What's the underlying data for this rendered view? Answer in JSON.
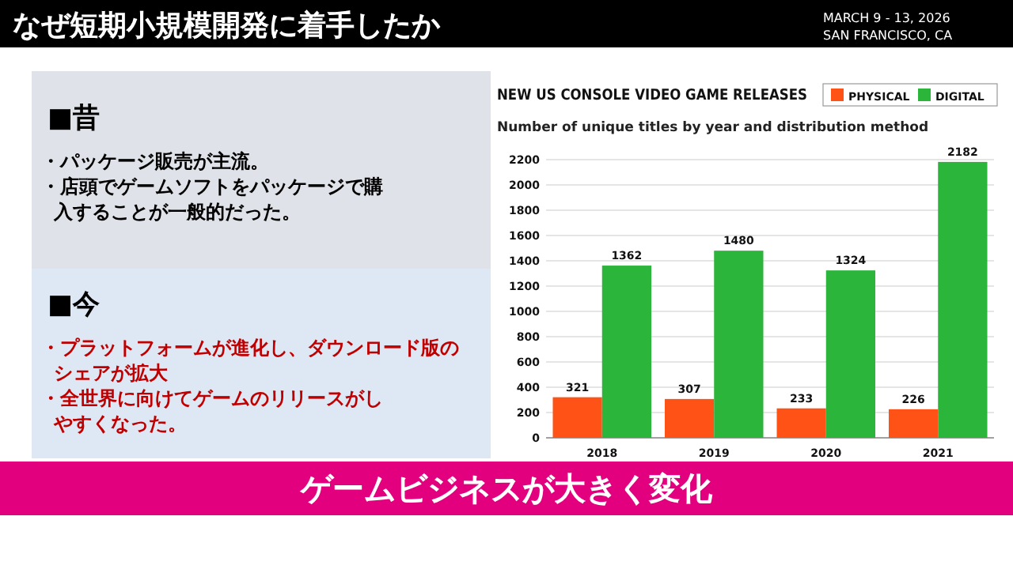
{
  "chart_data": [
    {
      "type": "other",
      "title": "なぜ短期小規模開発に着手したか",
      "annotations": [
        "■昔",
        "・パッケージ販売が主流。",
        "・店頭でゲームソフトをパッケージで購入することが一般的だった。",
        "■今",
        "・プラットフォームが進化し、ダウンロード版のシェアが拡大",
        "・全世界に向けてゲームのリリースがしやすくなった。",
        "ゲームビジネスが大きく変化",
        "MARCH 9 - 13, 2026",
        "SAN FRANCISCO, CA"
      ]
    },
    {
      "type": "bar",
      "title": "NEW US CONSOLE VIDEO GAME RELEASES",
      "subtitle": "Number of unique titles by year and distribution method",
      "categories": [
        "2018",
        "2019",
        "2020",
        "2021"
      ],
      "series": [
        {
          "name": "PHYSICAL",
          "color": "#ff5216",
          "values": [
            321,
            307,
            233,
            226
          ]
        },
        {
          "name": "DIGITAL",
          "color": "#2bb53a",
          "values": [
            1362,
            1480,
            1324,
            2182
          ]
        }
      ],
      "ylim": [
        0,
        2200
      ],
      "yticks": [
        0,
        200,
        400,
        600,
        800,
        1000,
        1200,
        1400,
        1600,
        1800,
        2000,
        2200
      ],
      "grid": "y",
      "legend": "top right",
      "data_labels": true
    }
  ]
}
